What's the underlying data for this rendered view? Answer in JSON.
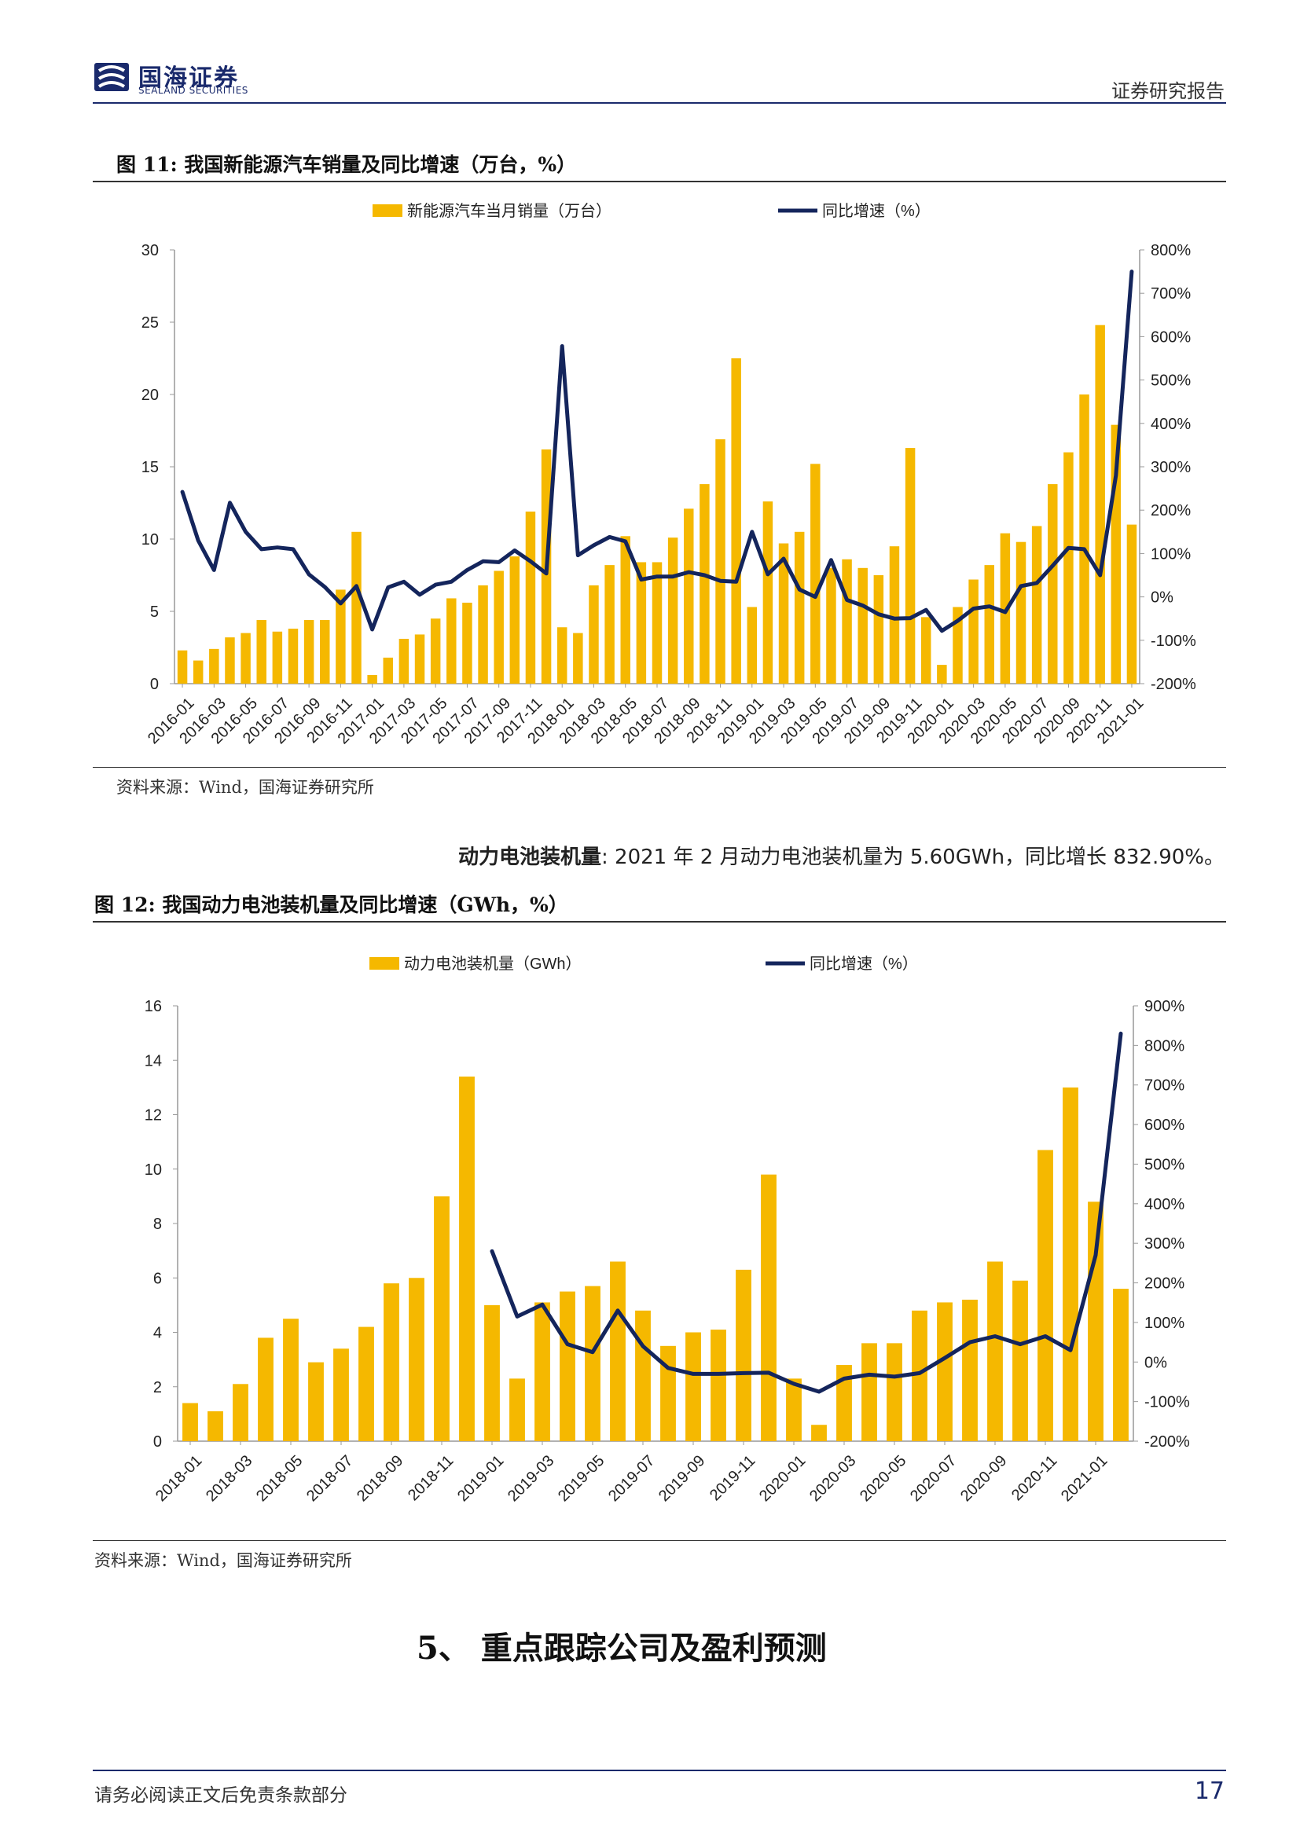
{
  "header": {
    "logo_cn": "国海证券",
    "logo_en": "SEALAND SECURITIES",
    "report_type": "证券研究报告"
  },
  "figure11": {
    "title": "图 11: 我国新能源汽车销量及同比增速（万台，%）",
    "source": "资料来源：Wind，国海证券研究所"
  },
  "paragraph": {
    "lead": "动力电池装机量",
    "text": ": 2021 年 2 月动力电池装机量为 5.60GWh，同比增长 832.90%。"
  },
  "figure12": {
    "title": "图 12: 我国动力电池装机量及同比增速（GWh，%）",
    "source": "资料来源：Wind，国海证券研究所"
  },
  "section": {
    "title": "5、  重点跟踪公司及盈利预测"
  },
  "footer": {
    "disclaimer": "请务必阅读正文后免责条款部分",
    "page": "17"
  },
  "colors": {
    "bar": "#F5B800",
    "line": "#14255C",
    "brand": "#1a2a6c"
  },
  "chart_data": [
    {
      "type": "bar",
      "id": "fig11",
      "series": [
        {
          "name": "新能源汽车当月销量（万台）",
          "type": "bar",
          "axis": "left",
          "values": [
            2.3,
            1.6,
            2.4,
            3.2,
            3.5,
            4.4,
            3.6,
            3.8,
            4.4,
            4.4,
            6.5,
            10.5,
            0.6,
            1.8,
            3.1,
            3.4,
            4.5,
            5.9,
            5.6,
            6.8,
            7.8,
            8.8,
            11.9,
            16.2,
            3.9,
            3.5,
            6.8,
            8.2,
            10.2,
            8.4,
            8.4,
            10.1,
            12.1,
            13.8,
            16.9,
            22.5,
            5.3,
            12.6,
            9.7,
            10.5,
            15.2,
            8.0,
            8.6,
            8.0,
            7.5,
            9.5,
            16.3,
            4.6,
            1.3,
            5.3,
            7.2,
            8.2,
            10.4,
            9.8,
            10.9,
            13.8,
            16.0,
            20.0,
            24.8,
            17.9,
            11.0
          ]
        },
        {
          "name": "同比增速（%）",
          "type": "line",
          "axis": "right",
          "values": [
            242,
            130,
            62,
            217,
            150,
            110,
            114,
            110,
            52,
            23,
            -15,
            25,
            -75,
            22,
            35,
            5,
            28,
            35,
            62,
            82,
            80,
            107,
            82,
            54,
            578,
            96,
            119,
            138,
            128,
            40,
            47,
            47,
            57,
            50,
            37,
            35,
            150,
            52,
            88,
            17,
            0,
            85,
            -7,
            -20,
            -40,
            -50,
            -49,
            -30,
            -78,
            -55,
            -27,
            -22,
            -35,
            25,
            32,
            72,
            113,
            110,
            50,
            280,
            750
          ]
        }
      ],
      "categories": [
        "2016-01",
        "2016-02",
        "2016-03",
        "2016-04",
        "2016-05",
        "2016-06",
        "2016-07",
        "2016-08",
        "2016-09",
        "2016-10",
        "2016-11",
        "2016-12",
        "2017-01",
        "2017-02",
        "2017-03",
        "2017-04",
        "2017-05",
        "2017-06",
        "2017-07",
        "2017-08",
        "2017-09",
        "2017-10",
        "2017-11",
        "2017-12",
        "2018-01",
        "2018-02",
        "2018-03",
        "2018-04",
        "2018-05",
        "2018-06",
        "2018-07",
        "2018-08",
        "2018-09",
        "2018-10",
        "2018-11",
        "2018-12",
        "2019-01",
        "2019-02",
        "2019-03",
        "2019-04",
        "2019-05",
        "2019-06",
        "2019-07",
        "2019-08",
        "2019-09",
        "2019-10",
        "2019-11",
        "2019-12",
        "2020-01",
        "2020-02",
        "2020-03",
        "2020-04",
        "2020-05",
        "2020-06",
        "2020-07",
        "2020-08",
        "2020-09",
        "2020-10",
        "2020-11",
        "2020-12",
        "2021-01"
      ],
      "x_tick_labels": [
        "2016-01",
        "2016-03",
        "2016-05",
        "2016-07",
        "2016-09",
        "2016-11",
        "2017-01",
        "2017-03",
        "2017-05",
        "2017-07",
        "2017-09",
        "2017-11",
        "2018-01",
        "2018-03",
        "2018-05",
        "2018-07",
        "2018-09",
        "2018-11",
        "2019-01",
        "2019-03",
        "2019-05",
        "2019-07",
        "2019-09",
        "2019-11",
        "2020-01",
        "2020-03",
        "2020-05",
        "2020-07",
        "2020-09",
        "2020-11",
        "2021-01"
      ],
      "ylim_left": [
        0,
        30
      ],
      "yticks_left": [
        "0",
        "5",
        "10",
        "15",
        "20",
        "25",
        "30"
      ],
      "ylim_right": [
        -200,
        800
      ],
      "yticks_right": [
        "-200%",
        "-100%",
        "0%",
        "100%",
        "200%",
        "300%",
        "400%",
        "500%",
        "600%",
        "700%",
        "800%"
      ],
      "legend_position": "top",
      "grid": false
    },
    {
      "type": "bar",
      "id": "fig12",
      "series": [
        {
          "name": "动力电池装机量（GWh）",
          "type": "bar",
          "axis": "left",
          "values": [
            1.4,
            1.1,
            2.1,
            3.8,
            4.5,
            2.9,
            3.4,
            4.2,
            5.8,
            6.0,
            9.0,
            13.4,
            5.0,
            2.3,
            5.1,
            5.5,
            5.7,
            6.6,
            4.8,
            3.5,
            4.0,
            4.1,
            6.3,
            9.8,
            2.3,
            0.6,
            2.8,
            3.6,
            3.6,
            4.8,
            5.1,
            5.2,
            6.6,
            5.9,
            10.7,
            13.0,
            8.8,
            5.6
          ]
        },
        {
          "name": "同比增速（%）",
          "type": "line",
          "axis": "right",
          "values": [
            null,
            null,
            null,
            null,
            null,
            null,
            null,
            null,
            null,
            null,
            null,
            null,
            280,
            115,
            145,
            45,
            25,
            130,
            40,
            -15,
            -30,
            -30,
            -28,
            -27,
            -55,
            -75,
            -42,
            -32,
            -37,
            -28,
            10,
            50,
            65,
            45,
            65,
            30,
            270,
            830
          ]
        }
      ],
      "categories": [
        "2018-01",
        "2018-02",
        "2018-03",
        "2018-04",
        "2018-05",
        "2018-06",
        "2018-07",
        "2018-08",
        "2018-09",
        "2018-10",
        "2018-11",
        "2018-12",
        "2019-01",
        "2019-02",
        "2019-03",
        "2019-04",
        "2019-05",
        "2019-06",
        "2019-07",
        "2019-08",
        "2019-09",
        "2019-10",
        "2019-11",
        "2019-12",
        "2020-01",
        "2020-02",
        "2020-03",
        "2020-04",
        "2020-05",
        "2020-06",
        "2020-07",
        "2020-08",
        "2020-09",
        "2020-10",
        "2020-11",
        "2020-12",
        "2021-01",
        "2021-02"
      ],
      "x_tick_labels": [
        "2018-01",
        "2018-03",
        "2018-05",
        "2018-07",
        "2018-09",
        "2018-11",
        "2019-01",
        "2019-03",
        "2019-05",
        "2019-07",
        "2019-09",
        "2019-11",
        "2020-01",
        "2020-03",
        "2020-05",
        "2020-07",
        "2020-09",
        "2020-11",
        "2021-01"
      ],
      "ylim_left": [
        0,
        16
      ],
      "yticks_left": [
        "0",
        "2",
        "4",
        "6",
        "8",
        "10",
        "12",
        "14",
        "16"
      ],
      "ylim_right": [
        -200,
        900
      ],
      "yticks_right": [
        "-200%",
        "-100%",
        "0%",
        "100%",
        "200%",
        "300%",
        "400%",
        "500%",
        "600%",
        "700%",
        "800%",
        "900%"
      ],
      "legend_position": "top",
      "grid": false
    }
  ]
}
